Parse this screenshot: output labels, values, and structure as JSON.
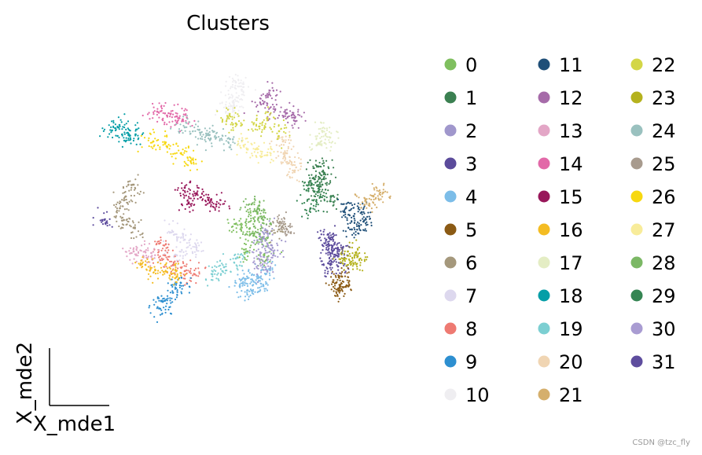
{
  "chart_data": {
    "type": "scatter",
    "title": "Clusters",
    "xlabel": "X_mde1",
    "ylabel": "X_mde2",
    "grid": false,
    "legend_placement": "right",
    "legend_columns": 3,
    "series": [
      {
        "name": "0",
        "color": "#7fbf5f",
        "points": [
          [
            5.35,
            3.58
          ],
          [
            5.0,
            3.7
          ],
          [
            5.68,
            3.36
          ],
          [
            5.55,
            3.96
          ],
          [
            5.3,
            3.0
          ],
          [
            5.8,
            2.86
          ]
        ]
      },
      {
        "name": "1",
        "color": "#3b8051",
        "points": [
          [
            7.1,
            5.16
          ],
          [
            7.25,
            5.0
          ],
          [
            7.0,
            4.84
          ],
          [
            7.2,
            4.7
          ],
          [
            7.0,
            4.52
          ],
          [
            7.4,
            4.28
          ]
        ]
      },
      {
        "name": "2",
        "color": "#a097cc",
        "points": [
          [
            5.68,
            3.32
          ],
          [
            5.8,
            3.5
          ],
          [
            5.9,
            3.16
          ]
        ]
      },
      {
        "name": "3",
        "color": "#5b4b9b",
        "points": [
          [
            7.4,
            3.34
          ],
          [
            7.45,
            3.1
          ],
          [
            7.55,
            2.9
          ],
          [
            7.35,
            2.7
          ],
          [
            7.6,
            2.62
          ]
        ]
      },
      {
        "name": "4",
        "color": "#7cbde8",
        "points": [
          [
            5.1,
            2.12
          ],
          [
            5.4,
            2.0
          ],
          [
            5.7,
            2.12
          ],
          [
            5.55,
            2.32
          ],
          [
            5.8,
            2.52
          ],
          [
            5.25,
            2.3
          ]
        ]
      },
      {
        "name": "5",
        "color": "#8b5a14",
        "points": [
          [
            7.7,
            2.36
          ],
          [
            7.55,
            2.2
          ],
          [
            7.8,
            2.1
          ],
          [
            7.65,
            2.0
          ]
        ]
      },
      {
        "name": "6",
        "color": "#a5987c",
        "points": [
          [
            2.4,
            4.7
          ],
          [
            2.2,
            4.4
          ],
          [
            2.05,
            4.1
          ],
          [
            2.15,
            3.8
          ],
          [
            2.4,
            3.6
          ],
          [
            6.1,
            3.56
          ]
        ]
      },
      {
        "name": "7",
        "color": "#ddd8ee",
        "points": [
          [
            3.4,
            3.5
          ],
          [
            3.7,
            3.3
          ],
          [
            4.0,
            3.1
          ],
          [
            3.5,
            2.9
          ]
        ]
      },
      {
        "name": "8",
        "color": "#ee7a72",
        "points": [
          [
            3.05,
            3.2
          ],
          [
            3.2,
            2.9
          ],
          [
            3.4,
            2.65
          ],
          [
            3.7,
            2.5
          ],
          [
            3.95,
            2.42
          ]
        ]
      },
      {
        "name": "9",
        "color": "#2d8fd0",
        "points": [
          [
            3.6,
            2.2
          ],
          [
            3.4,
            1.95
          ],
          [
            3.2,
            1.75
          ],
          [
            3.05,
            1.55
          ]
        ]
      },
      {
        "name": "10",
        "color": "#efeef1",
        "points": [
          [
            5.0,
            7.3
          ],
          [
            5.15,
            7.12
          ],
          [
            4.85,
            6.92
          ],
          [
            4.95,
            6.72
          ],
          [
            4.75,
            6.56
          ]
        ]
      },
      {
        "name": "11",
        "color": "#1f4f78",
        "points": [
          [
            7.8,
            4.1
          ],
          [
            8.0,
            3.9
          ],
          [
            8.25,
            3.76
          ],
          [
            7.95,
            3.56
          ],
          [
            8.2,
            4.0
          ]
        ]
      },
      {
        "name": "12",
        "color": "#a66ba9",
        "points": [
          [
            5.7,
            6.76
          ],
          [
            6.0,
            6.62
          ],
          [
            6.3,
            6.52
          ],
          [
            6.5,
            6.4
          ],
          [
            5.85,
            7.0
          ]
        ]
      },
      {
        "name": "13",
        "color": "#e3a6c6",
        "points": [
          [
            2.4,
            3.0
          ],
          [
            2.65,
            2.88
          ],
          [
            2.85,
            2.96
          ]
        ]
      },
      {
        "name": "14",
        "color": "#e269a8",
        "points": [
          [
            3.0,
            6.56
          ],
          [
            3.25,
            6.46
          ],
          [
            3.5,
            6.44
          ],
          [
            3.65,
            6.36
          ]
        ]
      },
      {
        "name": "15",
        "color": "#98175a",
        "points": [
          [
            3.7,
            4.62
          ],
          [
            4.0,
            4.46
          ],
          [
            4.3,
            4.32
          ],
          [
            3.8,
            4.22
          ],
          [
            4.5,
            4.2
          ]
        ]
      },
      {
        "name": "16",
        "color": "#f4bc22",
        "points": [
          [
            2.7,
            2.66
          ],
          [
            2.95,
            2.52
          ],
          [
            3.25,
            2.48
          ],
          [
            3.5,
            2.36
          ]
        ]
      },
      {
        "name": "17",
        "color": "#e4edc4",
        "points": [
          [
            7.2,
            6.06
          ],
          [
            7.4,
            5.9
          ],
          [
            7.1,
            5.76
          ]
        ]
      },
      {
        "name": "18",
        "color": "#059ea7",
        "points": [
          [
            2.0,
            6.16
          ],
          [
            2.25,
            6.02
          ],
          [
            2.45,
            5.98
          ],
          [
            1.85,
            6.08
          ]
        ]
      },
      {
        "name": "19",
        "color": "#7ccfd2",
        "points": [
          [
            4.7,
            2.6
          ],
          [
            5.0,
            2.82
          ],
          [
            4.4,
            2.42
          ]
        ]
      },
      {
        "name": "20",
        "color": "#f0d5b3",
        "points": [
          [
            6.2,
            5.8
          ],
          [
            6.3,
            5.5
          ],
          [
            6.35,
            5.25
          ],
          [
            6.5,
            5.06
          ]
        ]
      },
      {
        "name": "21",
        "color": "#d5af6c",
        "points": [
          [
            8.5,
            4.4
          ],
          [
            8.75,
            4.5
          ],
          [
            8.3,
            4.3
          ]
        ]
      },
      {
        "name": "22",
        "color": "#d3d646",
        "points": [
          [
            4.8,
            6.42
          ],
          [
            5.0,
            6.26
          ],
          [
            5.6,
            6.18
          ],
          [
            5.8,
            6.4
          ],
          [
            6.1,
            6.06
          ]
        ]
      },
      {
        "name": "23",
        "color": "#b5b21e",
        "points": [
          [
            7.85,
            3.0
          ],
          [
            8.1,
            2.88
          ],
          [
            8.0,
            2.68
          ],
          [
            7.75,
            2.8
          ]
        ]
      },
      {
        "name": "24",
        "color": "#9ac1bf",
        "points": [
          [
            3.7,
            6.16
          ],
          [
            4.1,
            6.02
          ],
          [
            4.5,
            5.9
          ],
          [
            4.85,
            5.86
          ],
          [
            4.3,
            5.96
          ]
        ]
      },
      {
        "name": "25",
        "color": "#a89b8e",
        "points": [
          [
            6.1,
            3.72
          ],
          [
            6.3,
            3.56
          ]
        ]
      },
      {
        "name": "26",
        "color": "#f7d80f",
        "points": [
          [
            2.9,
            5.8
          ],
          [
            3.2,
            5.74
          ],
          [
            3.6,
            5.5
          ],
          [
            3.85,
            5.3
          ]
        ]
      },
      {
        "name": "27",
        "color": "#f8ec9a",
        "points": [
          [
            5.5,
            5.6
          ],
          [
            5.8,
            5.45
          ],
          [
            5.2,
            5.7
          ]
        ]
      },
      {
        "name": "28",
        "color": "#7bb865",
        "points": [
          [
            5.4,
            4.2
          ],
          [
            5.55,
            4.0
          ],
          [
            5.7,
            3.8
          ],
          [
            5.45,
            3.4
          ]
        ]
      },
      {
        "name": "29",
        "color": "#358553",
        "points": [
          [
            7.15,
            4.4
          ],
          [
            6.9,
            4.1
          ],
          [
            6.85,
            4.6
          ]
        ]
      },
      {
        "name": "30",
        "color": "#a99cd2",
        "points": [
          [
            5.75,
            2.6
          ],
          [
            5.95,
            2.9
          ],
          [
            5.6,
            2.8
          ]
        ]
      },
      {
        "name": "31",
        "color": "#5e4d9e",
        "points": [
          [
            1.6,
            3.8
          ],
          [
            7.3,
            3.3
          ],
          [
            7.45,
            2.95
          ],
          [
            7.6,
            3.05
          ]
        ]
      }
    ]
  },
  "watermark": "CSDN @tzc_fly"
}
